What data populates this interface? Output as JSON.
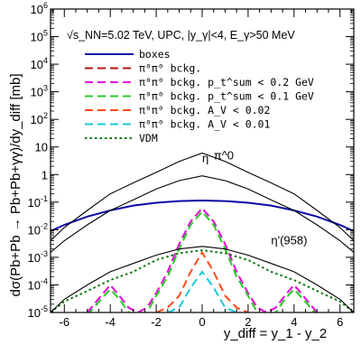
{
  "chart_data": {
    "type": "line",
    "title": "",
    "xlabel": "y_diff = y_1 - y_2",
    "ylabel": "dσ(Pb+Pb → Pb+Pb+γγ)/dy_diff [mb]",
    "xlim": [
      -6.6,
      6.6
    ],
    "ylim": [
      1e-05,
      1000000.0
    ],
    "yscale": "log",
    "grid": false,
    "legend_position": "top-left",
    "legend_title": "√s_NN=5.02 TeV, UPC, |y_γ|<4, E_γ>50 MeV",
    "x_ticks": [
      -6,
      -4,
      -2,
      0,
      2,
      4,
      6
    ],
    "y_ticks": [
      "10^-5",
      "10^-4",
      "10^-3",
      "10^-2",
      "10^-1",
      "1",
      "10",
      "10^2",
      "10^3",
      "10^4",
      "10^5",
      "10^6"
    ],
    "curve_labels": [
      "π^0",
      "η",
      "η'(958)"
    ],
    "series": [
      {
        "name": "boxes",
        "color": "#0a0aa8",
        "style": "solid",
        "x": [
          -6.6,
          -6,
          -5,
          -4,
          -3,
          -2,
          -1,
          0,
          1,
          2,
          3,
          4,
          5,
          6,
          6.6
        ],
        "y": [
          0.009,
          0.015,
          0.03,
          0.05,
          0.075,
          0.095,
          0.11,
          0.115,
          0.11,
          0.095,
          0.075,
          0.05,
          0.03,
          0.015,
          0.009
        ]
      },
      {
        "name": "π^0π^0 bckg.",
        "color": "#ba1414",
        "style": "dash",
        "x": [
          -5,
          -4.4,
          -4,
          -3.6,
          -3.2,
          -2.8,
          -2.4,
          -2,
          -1.5,
          -1,
          -0.5,
          0,
          0.5,
          1,
          1.5,
          2,
          2.4,
          2.8,
          3.2,
          3.6,
          4,
          4.4,
          5
        ],
        "y": [
          1e-05,
          4e-05,
          0.0001,
          4e-05,
          1.5e-05,
          1e-05,
          1.5e-05,
          5e-05,
          0.0003,
          0.003,
          0.02,
          0.06,
          0.02,
          0.003,
          0.0003,
          5e-05,
          1.5e-05,
          1e-05,
          1.5e-05,
          4e-05,
          0.0001,
          4e-05,
          1e-05
        ]
      },
      {
        "name": "π^0π^0 bckg. p_t^sum < 0.2 GeV",
        "color": "#e018e0",
        "style": "dash",
        "x": [
          -5,
          -4.4,
          -4,
          -3.6,
          -3.2,
          -2.8,
          -2.4,
          -2,
          -1.5,
          -1,
          -0.5,
          0,
          0.5,
          1,
          1.5,
          2,
          2.4,
          2.8,
          3.2,
          3.6,
          4,
          4.4,
          5
        ],
        "y": [
          1e-05,
          4e-05,
          0.0001,
          4e-05,
          1.5e-05,
          1e-05,
          1.5e-05,
          5e-05,
          0.0003,
          0.003,
          0.02,
          0.06,
          0.02,
          0.003,
          0.0003,
          5e-05,
          1.5e-05,
          1e-05,
          1.5e-05,
          4e-05,
          0.0001,
          4e-05,
          1e-05
        ]
      },
      {
        "name": "π^0π^0 bckg. p_t^sum < 0.1 GeV",
        "color": "#28c828",
        "style": "dash",
        "x": [
          -5,
          -4.4,
          -4,
          -3.6,
          -3.2,
          -2.8,
          -2.4,
          -2,
          -1.5,
          -1,
          -0.5,
          0,
          0.5,
          1,
          1.5,
          2,
          2.4,
          2.8,
          3.2,
          3.6,
          4,
          4.4,
          5
        ],
        "y": [
          8e-06,
          3e-05,
          7e-05,
          3e-05,
          1e-05,
          8e-06,
          1e-05,
          4e-05,
          0.0002,
          0.002,
          0.015,
          0.045,
          0.015,
          0.002,
          0.0002,
          4e-05,
          1e-05,
          8e-06,
          1e-05,
          3e-05,
          7e-05,
          3e-05,
          8e-06
        ]
      },
      {
        "name": "π^0π^0 bckg. A_V < 0.02",
        "color": "#ff4a1a",
        "style": "dash",
        "x": [
          -2,
          -1.5,
          -1,
          -0.5,
          0,
          0.5,
          1,
          1.5,
          2
        ],
        "y": [
          1e-05,
          1.5e-05,
          4e-05,
          0.0003,
          0.0015,
          0.0003,
          4e-05,
          1.5e-05,
          1e-05
        ]
      },
      {
        "name": "π^0π^0 bckg. A_V < 0.01",
        "color": "#18c8d8",
        "style": "dash",
        "x": [
          -1.5,
          -1,
          -0.5,
          0,
          0.5,
          1,
          1.5
        ],
        "y": [
          1e-05,
          1.5e-05,
          8e-05,
          0.0003,
          8e-05,
          1.5e-05,
          1e-05
        ]
      },
      {
        "name": "VDM",
        "color": "#0a780a",
        "style": "dot",
        "x": [
          -6.6,
          -6,
          -5,
          -4,
          -3,
          -2,
          -1,
          0,
          1,
          2,
          3,
          4,
          5,
          6,
          6.6
        ],
        "y": [
          1e-05,
          2.5e-05,
          6e-05,
          0.00015,
          0.0003,
          0.0008,
          0.0014,
          0.0018,
          0.0014,
          0.0008,
          0.0003,
          0.00015,
          6e-05,
          2.5e-05,
          1e-05
        ]
      },
      {
        "name": "π^0",
        "color": "#000000",
        "style": "solid",
        "x": [
          -6.6,
          -6,
          -5,
          -4,
          -3,
          -2,
          -1,
          0,
          1,
          2,
          3,
          4,
          5,
          6,
          6.6
        ],
        "y": [
          0.004,
          0.012,
          0.05,
          0.2,
          0.5,
          1.2,
          3,
          6,
          3,
          1.2,
          0.5,
          0.2,
          0.05,
          0.012,
          0.004
        ]
      },
      {
        "name": "η",
        "color": "#000000",
        "style": "solid",
        "x": [
          -6.6,
          -6,
          -5,
          -4,
          -3,
          -2,
          -1,
          0,
          1,
          2,
          3,
          4,
          5,
          6,
          6.6
        ],
        "y": [
          0.0015,
          0.004,
          0.015,
          0.05,
          0.12,
          0.3,
          0.6,
          0.9,
          0.6,
          0.3,
          0.12,
          0.05,
          0.015,
          0.004,
          0.0015
        ]
      },
      {
        "name": "η'(958)",
        "color": "#000000",
        "style": "solid",
        "x": [
          -6.6,
          -6,
          -5,
          -4,
          -3,
          -2,
          -1,
          0,
          1,
          2,
          3,
          4,
          5,
          6,
          6.6
        ],
        "y": [
          1e-05,
          3e-05,
          0.0001,
          0.0003,
          0.0006,
          0.0012,
          0.002,
          0.0025,
          0.002,
          0.0012,
          0.0006,
          0.0003,
          0.0001,
          3e-05,
          1e-05
        ]
      }
    ]
  },
  "legend": [
    {
      "text": "boxes",
      "color": "#0a0aa8",
      "style": "solid"
    },
    {
      "text": "π⁰π⁰ bckg.",
      "color": "#ba1414",
      "style": "dash"
    },
    {
      "text": "π⁰π⁰ bckg. p_t^sum < 0.2 GeV",
      "color": "#e018e0",
      "style": "dash"
    },
    {
      "text": "π⁰π⁰ bckg. p_t^sum < 0.1 GeV",
      "color": "#28c828",
      "style": "dash"
    },
    {
      "text": "π⁰π⁰ bckg. A_V < 0.02",
      "color": "#ff4a1a",
      "style": "dash"
    },
    {
      "text": "π⁰π⁰ bckg. A_V < 0.01",
      "color": "#18c8d8",
      "style": "dash"
    },
    {
      "text": "VDM",
      "color": "#0a780a",
      "style": "dot"
    }
  ]
}
